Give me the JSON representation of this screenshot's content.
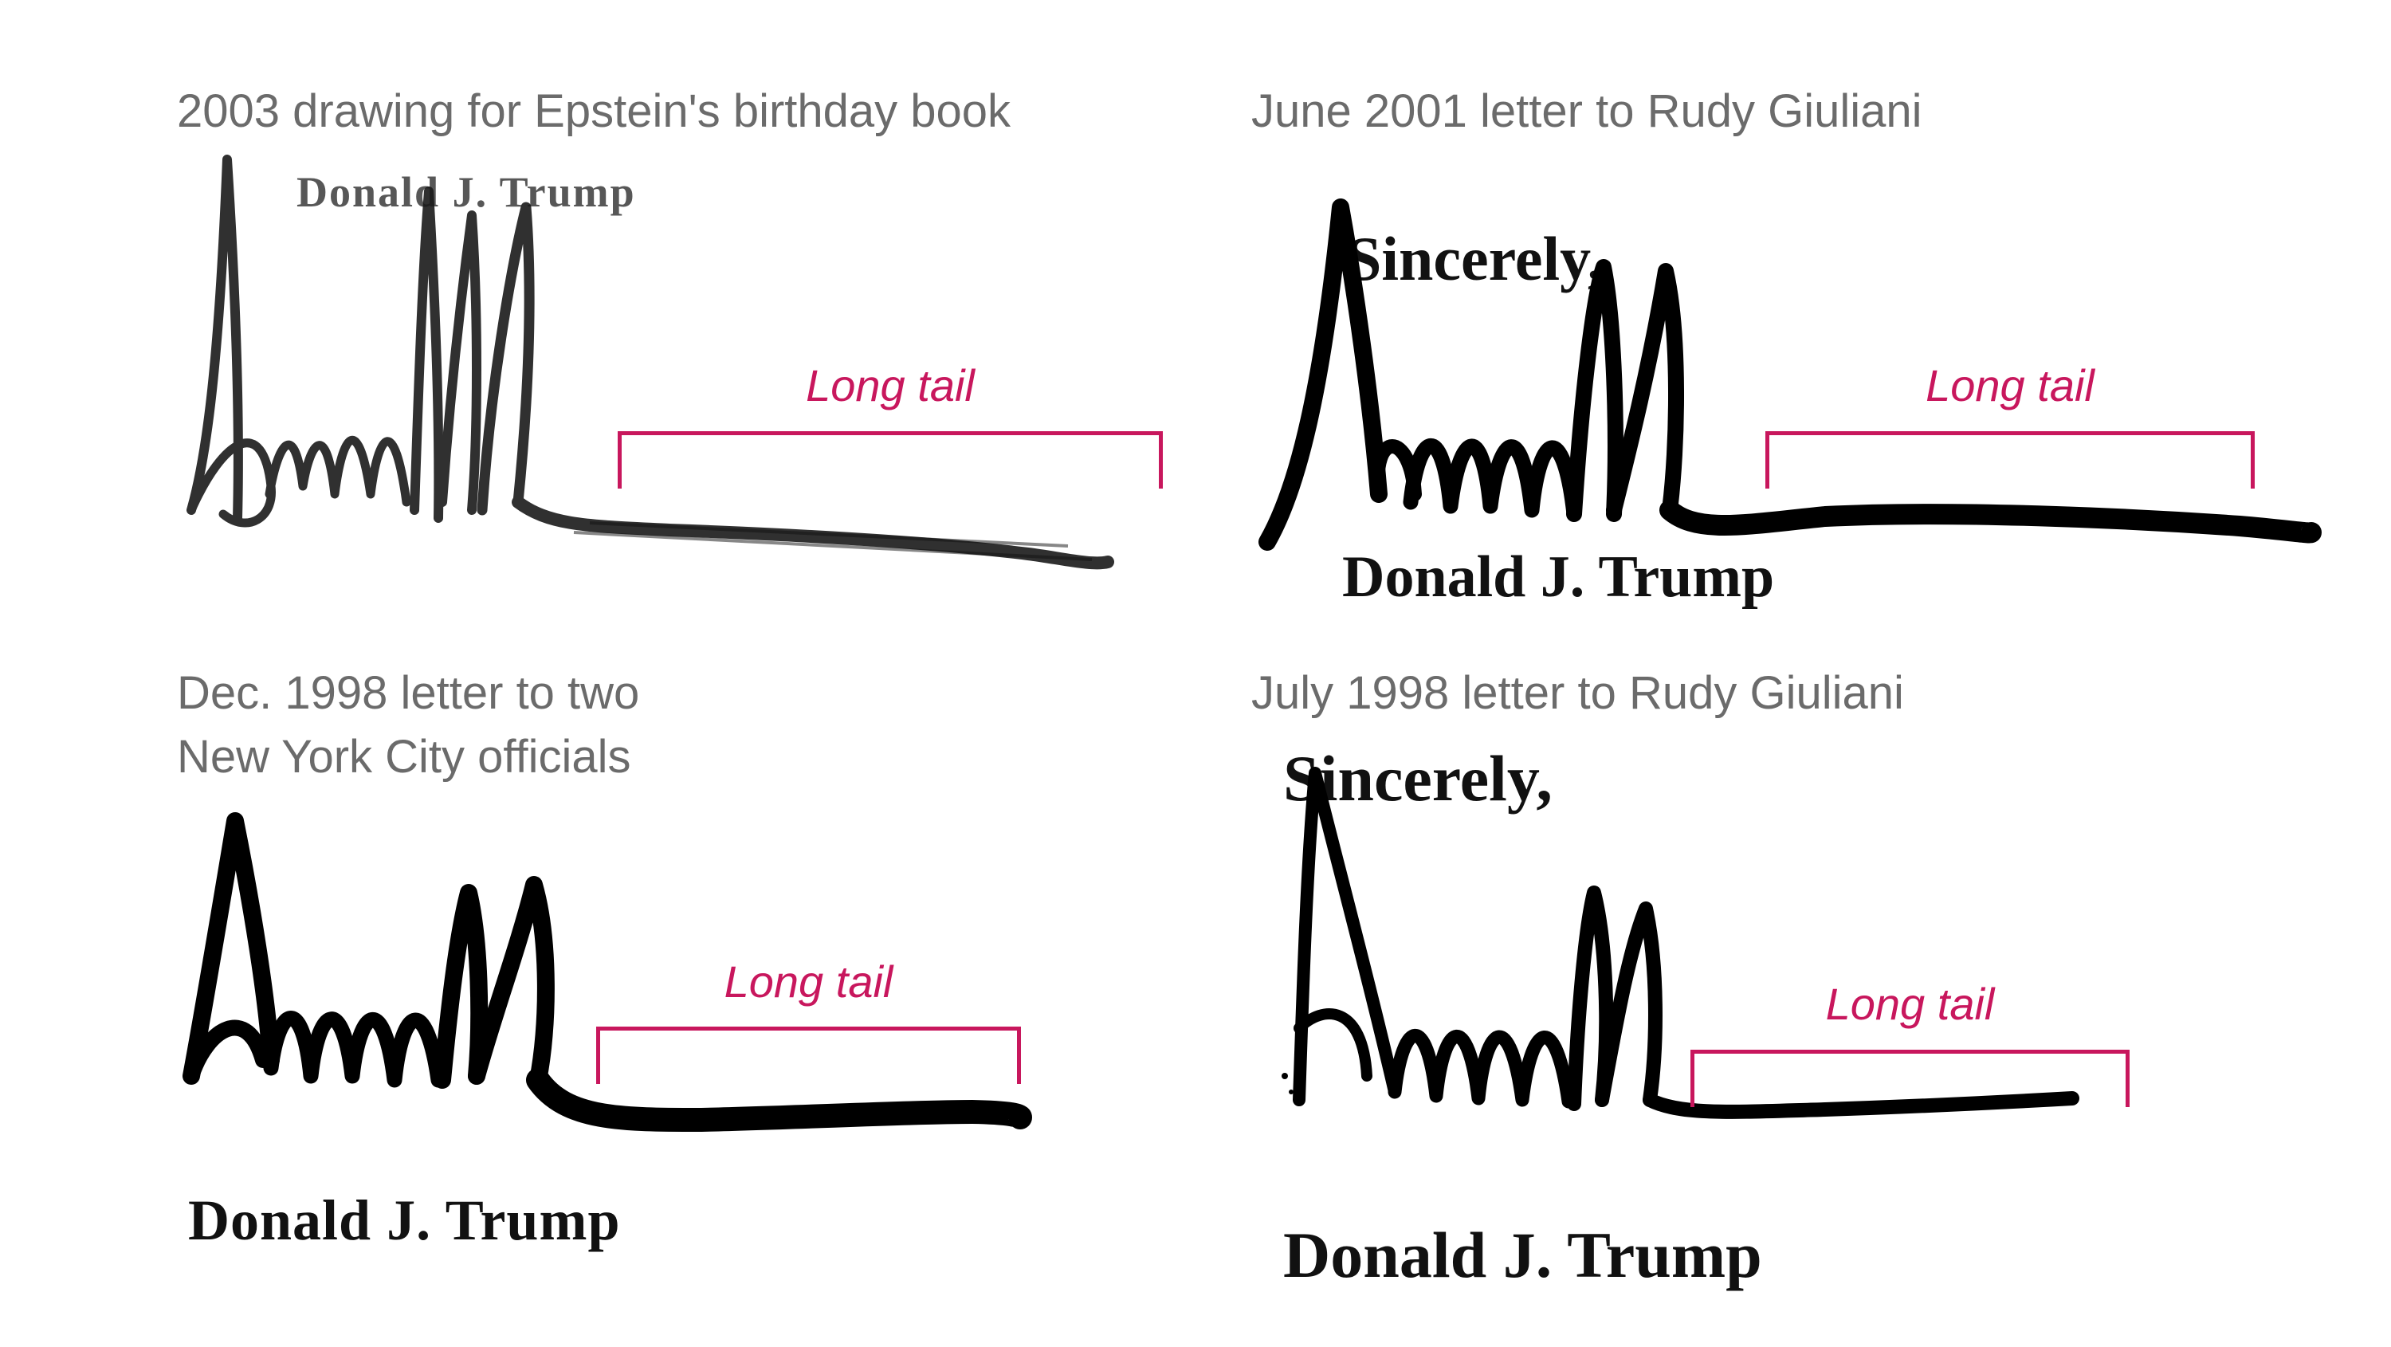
{
  "colors": {
    "caption": "#6b6b6b",
    "annotation": "#c8175d",
    "ink": "#111111"
  },
  "panels": [
    {
      "caption": [
        "2003 drawing for Epstein's birthday book"
      ],
      "signature_image": "Donald Trump handwritten signature",
      "printed_name": "Donald J. Trump",
      "annotation": "Long tail"
    },
    {
      "caption": [
        "June 2001 letter to Rudy Giuliani"
      ],
      "closing": "Sincerely,",
      "signature_image": "Donald Trump handwritten signature",
      "printed_name": "Donald J. Trump",
      "annotation": "Long tail"
    },
    {
      "caption": [
        "Dec. 1998 letter to two",
        "New York City officials"
      ],
      "signature_image": "Donald Trump handwritten signature",
      "printed_name": "Donald J. Trump",
      "annotation": "Long tail"
    },
    {
      "caption": [
        "July 1998 letter to Rudy Giuliani"
      ],
      "closing": "Sincerely,",
      "signature_image": "Donald Trump handwritten signature",
      "printed_name": "Donald J. Trump",
      "annotation": "Long tail"
    }
  ]
}
